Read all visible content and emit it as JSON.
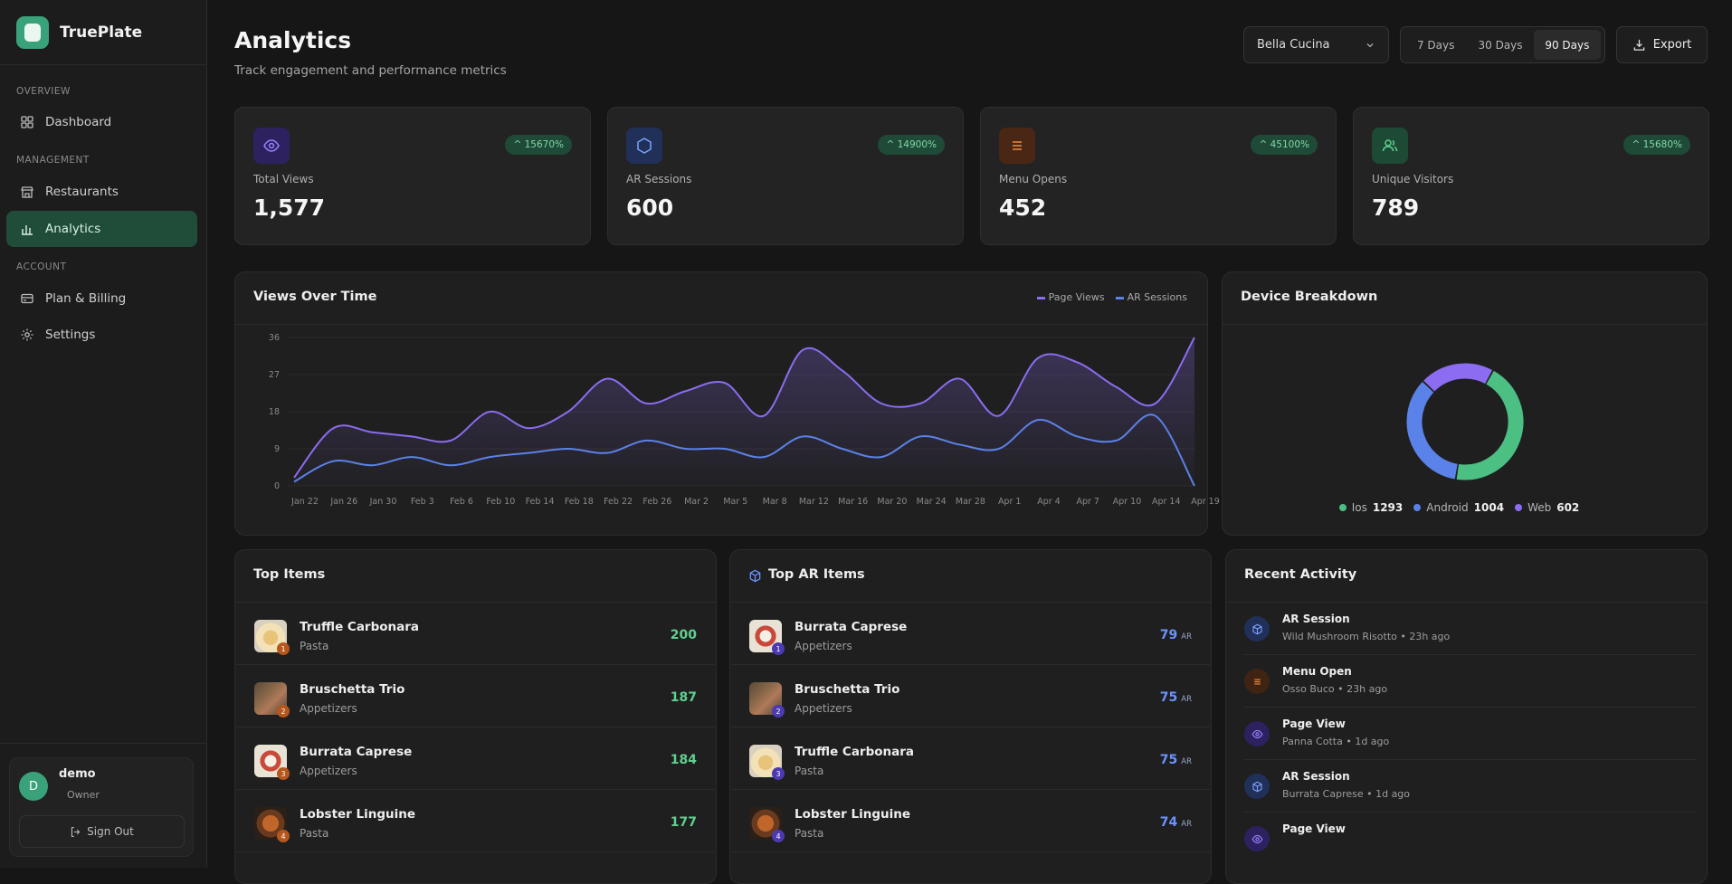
{
  "app": {
    "name": "TrueP​late"
  },
  "sidebar": {
    "sections": {
      "overview": "OVERVIEW",
      "management": "MANAGEMENT",
      "account": "ACCOUNT"
    },
    "items": [
      {
        "label": "Dashboard",
        "icon": "grid-icon"
      },
      {
        "label": "Restaurants",
        "icon": "store-icon"
      },
      {
        "label": "Analytics",
        "icon": "bar-chart-icon",
        "active": true
      },
      {
        "label": "Plan & Billing",
        "icon": "credit-card-icon"
      },
      {
        "label": "Settings",
        "icon": "gear-icon"
      }
    ],
    "user": {
      "initial": "D",
      "name": "demo",
      "role": "Owner",
      "signout": "Sign Out"
    }
  },
  "header": {
    "title": "Analytics",
    "subtitle": "Track engagement and performance metrics",
    "restaurant": "Bella Cucina",
    "ranges": [
      "7 Days",
      "30 Days",
      "90 Days"
    ],
    "active_range": "90 Days",
    "export": "Export"
  },
  "stats": [
    {
      "label": "Total Views",
      "value": "1,577",
      "change": "15670%",
      "icon": "eye-icon",
      "color": "#7a5cff"
    },
    {
      "label": "AR Sessions",
      "value": "600",
      "change": "14900%",
      "icon": "cube-icon",
      "color": "#6b93ff"
    },
    {
      "label": "Menu Opens",
      "value": "452",
      "change": "45100%",
      "icon": "menu-icon",
      "color": "#f08a3c"
    },
    {
      "label": "Unique Visitors",
      "value": "789",
      "change": "15680%",
      "icon": "users-icon",
      "color": "#5fd08f"
    }
  ],
  "views_chart": {
    "title": "Views Over Time",
    "legend": [
      "Page Views",
      "AR Sessions"
    ],
    "colors": {
      "page_views": "#8c6cf0",
      "ar_sessions": "#5b82e8"
    }
  },
  "chart_data": {
    "type": "line",
    "x": [
      "Jan 22",
      "Jan 26",
      "Jan 30",
      "Feb 3",
      "Feb 6",
      "Feb 10",
      "Feb 14",
      "Feb 18",
      "Feb 22",
      "Feb 26",
      "Mar 2",
      "Mar 5",
      "Mar 8",
      "Mar 12",
      "Mar 16",
      "Mar 20",
      "Mar 24",
      "Mar 28",
      "Apr 1",
      "Apr 4",
      "Apr 7",
      "Apr 10",
      "Apr 14",
      "Apr 19"
    ],
    "ylim": [
      0,
      36
    ],
    "yticks": [
      0,
      9,
      18,
      27,
      36
    ],
    "series": [
      {
        "name": "Page Views",
        "values": [
          2,
          14,
          13,
          12,
          11,
          18,
          14,
          18,
          26,
          20,
          23,
          25,
          17,
          33,
          28,
          20,
          20,
          26,
          17,
          31,
          30,
          24,
          20,
          36
        ]
      },
      {
        "name": "AR Sessions",
        "values": [
          1,
          6,
          5,
          7,
          5,
          7,
          8,
          9,
          8,
          11,
          9,
          9,
          7,
          12,
          9,
          7,
          12,
          10,
          9,
          16,
          12,
          11,
          17,
          0
        ]
      }
    ]
  },
  "device_chart": {
    "title": "Device Breakdown",
    "segments": [
      {
        "name": "Ios",
        "value": 1293,
        "color": "#4cbf82"
      },
      {
        "name": "Android",
        "value": 1004,
        "color": "#5b82e8"
      },
      {
        "name": "Web",
        "value": 602,
        "color": "#8c6cf0"
      }
    ]
  },
  "top_items": {
    "title": "Top Items",
    "rows": [
      {
        "name": "Truffle Carbonara",
        "category": "Pasta",
        "value": "200",
        "rank": "1"
      },
      {
        "name": "Bruschetta Trio",
        "category": "Appetizers",
        "value": "187",
        "rank": "2"
      },
      {
        "name": "Burrata Caprese",
        "category": "Appetizers",
        "value": "184",
        "rank": "3"
      },
      {
        "name": "Lobster Linguine",
        "category": "Pasta",
        "value": "177",
        "rank": "4"
      }
    ]
  },
  "top_ar_items": {
    "title": "Top AR Items",
    "unit": "AR",
    "rows": [
      {
        "name": "Burrata Caprese",
        "category": "Appetizers",
        "value": "79",
        "rank": "1"
      },
      {
        "name": "Bruschetta Trio",
        "category": "Appetizers",
        "value": "75",
        "rank": "2"
      },
      {
        "name": "Truffle Carbonara",
        "category": "Pasta",
        "value": "75",
        "rank": "3"
      },
      {
        "name": "Lobster Linguine",
        "category": "Pasta",
        "value": "74",
        "rank": "4"
      }
    ]
  },
  "activity": {
    "title": "Recent Activity",
    "rows": [
      {
        "title": "AR Session",
        "sub": "Wild Mushroom Risotto • 23h ago",
        "type": "ar"
      },
      {
        "title": "Menu Open",
        "sub": "Osso Buco • 23h ago",
        "type": "menu"
      },
      {
        "title": "Page View",
        "sub": "Panna Cotta • 1d ago",
        "type": "view"
      },
      {
        "title": "AR Session",
        "sub": "Burrata Caprese • 1d ago",
        "type": "ar"
      },
      {
        "title": "Page View",
        "sub": "",
        "type": "view"
      }
    ]
  }
}
